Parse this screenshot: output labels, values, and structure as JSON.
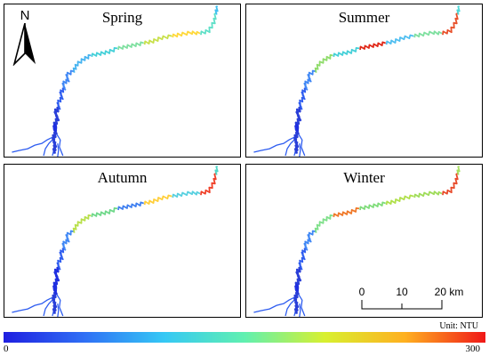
{
  "panels": [
    {
      "id": "spring",
      "title": "Spring",
      "colors": [
        "#2a3fd8",
        "#2a3fd8",
        "#2d5cf0",
        "#3f87f5",
        "#45b3f0",
        "#45d0d8",
        "#7fe0a0",
        "#c8e04a",
        "#ffd83a",
        "#5fe0c8",
        "#3fc0f0"
      ]
    },
    {
      "id": "summer",
      "title": "Summer",
      "colors": [
        "#2a3fd8",
        "#2a3fd8",
        "#2d5cf0",
        "#3f87f5",
        "#8fdc6a",
        "#45d0d8",
        "#e02818",
        "#4fbef0",
        "#7fe0a0",
        "#e8502a",
        "#4fd8d8"
      ]
    },
    {
      "id": "autumn",
      "title": "Autumn",
      "colors": [
        "#2a3fd8",
        "#1f2fe0",
        "#2d5cf0",
        "#3f87f5",
        "#b8e04a",
        "#6fd88a",
        "#3f7ff0",
        "#ffcf3a",
        "#58d0e0",
        "#f04028",
        "#50d8c8"
      ]
    },
    {
      "id": "winter",
      "title": "Winter",
      "colors": [
        "#2a3fd8",
        "#2a3fd8",
        "#2d5cf0",
        "#3f87f5",
        "#7fe08a",
        "#f07828",
        "#7fdc7a",
        "#b0e04a",
        "#9fdc5a",
        "#e84a2a",
        "#a8e060"
      ]
    }
  ],
  "north_label": "N",
  "scale": {
    "labels": [
      "0",
      "10",
      "20 km"
    ]
  },
  "legend": {
    "unit": "Unit: NTU",
    "min": "0",
    "max": "300",
    "gradient": [
      "#1f1fe0",
      "#2f6ff5",
      "#35c8f5",
      "#60f0b0",
      "#d8f030",
      "#ffb020",
      "#f01818"
    ]
  }
}
